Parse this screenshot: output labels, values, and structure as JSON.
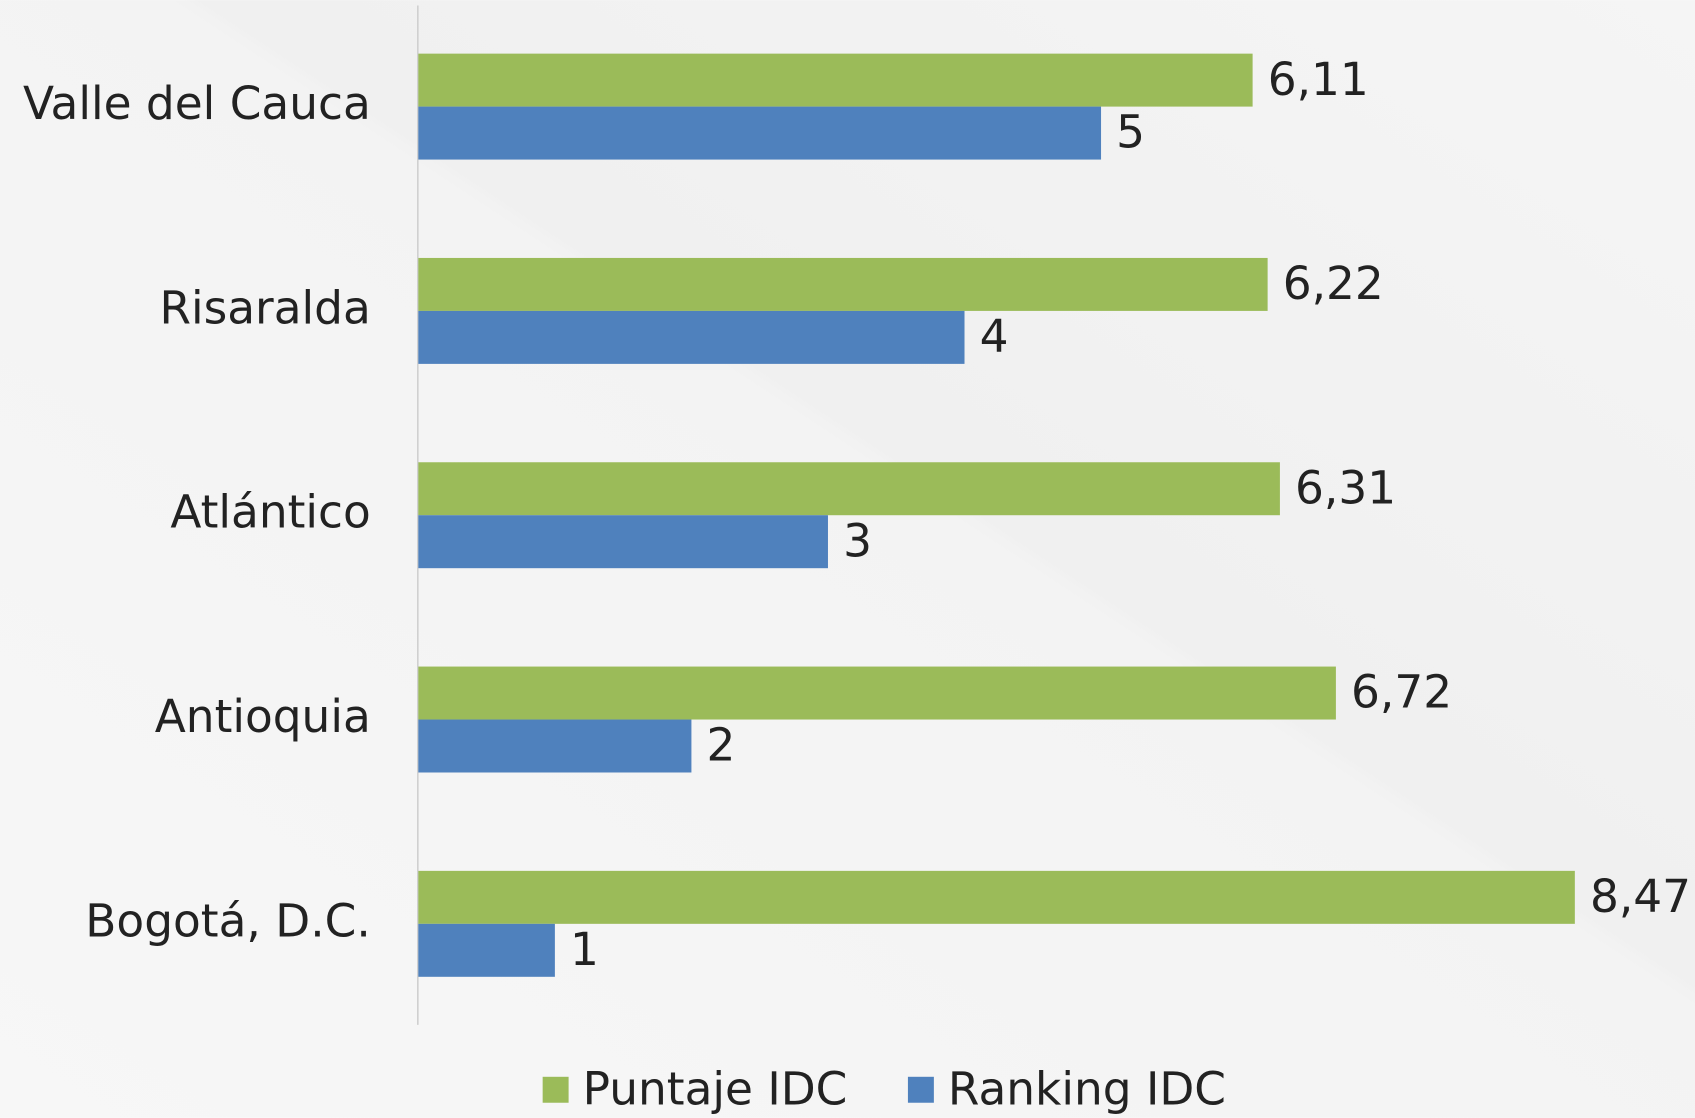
{
  "chart_data": {
    "type": "hbar",
    "categories": [
      "Valle del Cauca",
      "Risaralda",
      "Atlántico",
      "Antioquia",
      "Bogotá, D.C."
    ],
    "series": [
      {
        "name": "Puntaje IDC",
        "color": "#9bbb59",
        "values": [
          6.11,
          6.22,
          6.31,
          6.72,
          8.47
        ],
        "value_labels": [
          "6,11",
          "6,22",
          "6,31",
          "6,72",
          "8,47"
        ]
      },
      {
        "name": "Ranking IDC",
        "color": "#4f81bd",
        "values": [
          5,
          4,
          3,
          2,
          1
        ]
      }
    ],
    "xlim": [
      0,
      9.35
    ],
    "legend": "bottom"
  }
}
